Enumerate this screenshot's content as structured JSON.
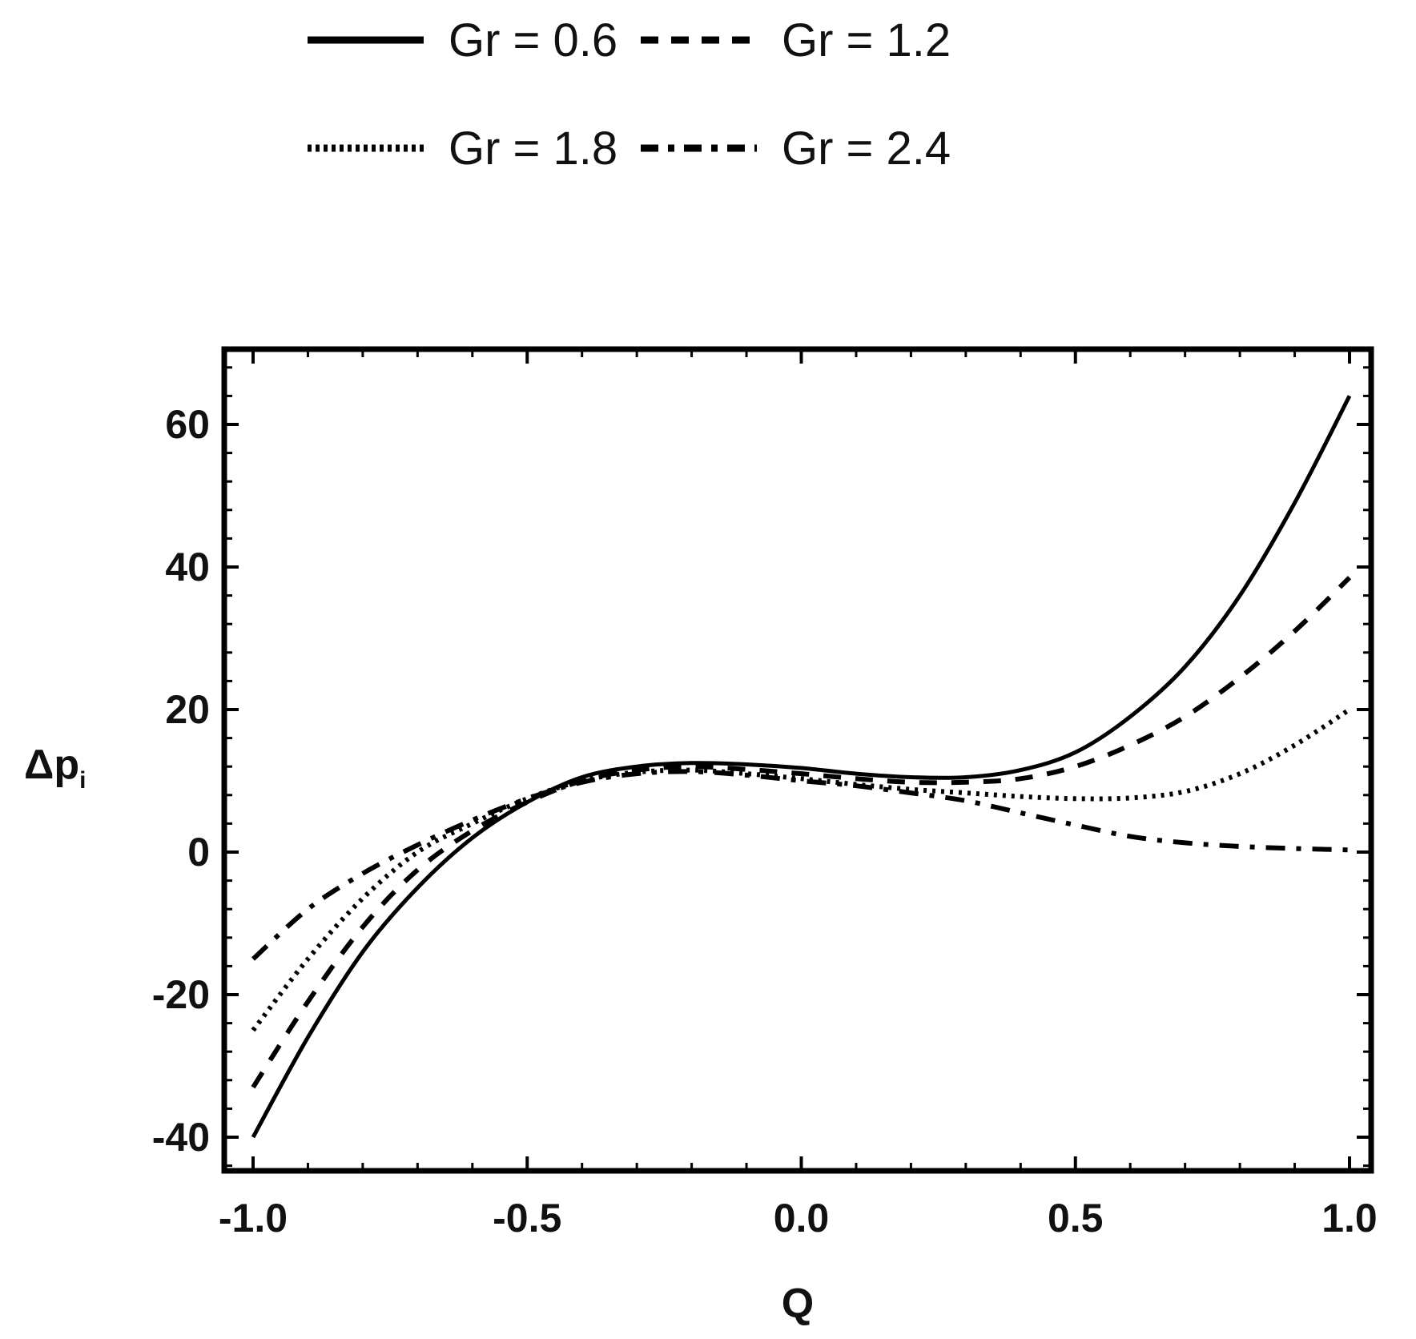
{
  "chart_data": {
    "type": "line",
    "xlabel": "Q",
    "ylabel": "Δp",
    "ylabel_subscript": "i",
    "xlim": [
      -1.0,
      1.0
    ],
    "ylim": [
      -45,
      70
    ],
    "xticks": [
      -1.0,
      -0.5,
      0.0,
      0.5,
      1.0
    ],
    "xtick_labels": [
      "-1.0",
      "-0.5",
      "0.0",
      "0.5",
      "1.0"
    ],
    "yticks": [
      -40,
      -20,
      0,
      20,
      40,
      60
    ],
    "ytick_labels": [
      "-40",
      "-20",
      "0",
      "20",
      "40",
      "60"
    ],
    "grid": false,
    "legend_position": "top",
    "x": [
      -1.0,
      -0.9,
      -0.8,
      -0.7,
      -0.6,
      -0.5,
      -0.4,
      -0.3,
      -0.2,
      -0.1,
      0.0,
      0.1,
      0.2,
      0.3,
      0.4,
      0.5,
      0.6,
      0.7,
      0.8,
      0.9,
      1.0
    ],
    "series": [
      {
        "name": "Gr = 0.6",
        "style": "solid",
        "values": [
          -40,
          -26,
          -14,
          -5,
          2,
          7,
          10.5,
          12,
          12.5,
          12.3,
          11.8,
          11,
          10.5,
          10.5,
          11.5,
          14,
          19,
          26,
          36,
          49,
          64
        ]
      },
      {
        "name": "Gr = 1.2",
        "style": "dashed",
        "values": [
          -33,
          -21,
          -10.5,
          -2.5,
          3,
          7,
          10,
          11.5,
          12,
          11.6,
          11,
          10.3,
          9.8,
          9.8,
          10.3,
          12,
          15,
          19,
          24.5,
          31,
          38.5
        ]
      },
      {
        "name": "Gr = 1.8",
        "style": "dotted",
        "values": [
          -25,
          -15,
          -6.5,
          0,
          4,
          7.5,
          10,
          11.2,
          11.5,
          11,
          10.3,
          9.5,
          8.8,
          8.3,
          7.8,
          7.5,
          7.6,
          8.5,
          11,
          15,
          20
        ]
      },
      {
        "name": "Gr = 2.4",
        "style": "dashdot",
        "values": [
          -15,
          -8,
          -3,
          1,
          4.5,
          7.5,
          9.8,
          11,
          11.3,
          10.8,
          10,
          9.3,
          8.3,
          7.2,
          5.5,
          3.8,
          2.2,
          1.3,
          0.8,
          0.5,
          0.3
        ]
      }
    ]
  }
}
